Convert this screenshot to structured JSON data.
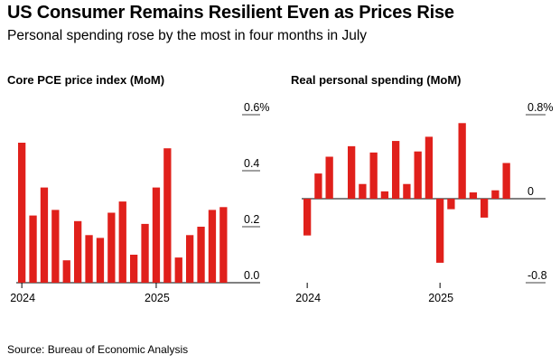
{
  "header": {
    "title": "US Consumer Remains Resilient Even as Prices Rise",
    "subtitle": "Personal spending rose by the most in four months in July"
  },
  "footer": {
    "source": "Source: Bureau of Economic Analysis"
  },
  "colors": {
    "bar": "#e0201b",
    "axis": "#000000",
    "grid": "#c8c8c8"
  },
  "chart_data": [
    {
      "type": "bar",
      "title": "Core PCE price index (MoM)",
      "x": [
        "2024-01",
        "2024-02",
        "2024-03",
        "2024-04",
        "2024-05",
        "2024-06",
        "2024-07",
        "2024-08",
        "2024-09",
        "2024-10",
        "2024-11",
        "2024-12",
        "2025-01",
        "2025-02",
        "2025-03",
        "2025-04",
        "2025-05",
        "2025-06",
        "2025-07"
      ],
      "values": [
        0.5,
        0.24,
        0.34,
        0.26,
        0.08,
        0.22,
        0.17,
        0.16,
        0.25,
        0.29,
        0.1,
        0.21,
        0.34,
        0.48,
        0.09,
        0.17,
        0.2,
        0.26,
        0.27
      ],
      "ylim": [
        0,
        0.6
      ],
      "yticks": [
        0.0,
        0.2,
        0.4,
        0.6
      ],
      "ytick_labels": [
        "0.0",
        "0.2",
        "0.4",
        "0.6%"
      ],
      "xtick_labels": [
        {
          "index": 0,
          "label": "2024"
        },
        {
          "index": 12,
          "label": "2025"
        }
      ],
      "grid": true,
      "ylabel": "",
      "xlabel": ""
    },
    {
      "type": "bar",
      "title": "Real personal spending (MoM)",
      "x": [
        "2024-01",
        "2024-02",
        "2024-03",
        "2024-04",
        "2024-05",
        "2024-06",
        "2024-07",
        "2024-08",
        "2024-09",
        "2024-10",
        "2024-11",
        "2024-12",
        "2025-01",
        "2025-02",
        "2025-03",
        "2025-04",
        "2025-05",
        "2025-06",
        "2025-07"
      ],
      "values": [
        -0.35,
        0.24,
        0.4,
        0.0,
        0.5,
        0.14,
        0.44,
        0.07,
        0.55,
        0.14,
        0.45,
        0.59,
        -0.61,
        -0.1,
        0.72,
        0.06,
        -0.18,
        0.08,
        0.34
      ],
      "ylim": [
        -0.8,
        0.8
      ],
      "yticks": [
        -0.8,
        0.0,
        0.8
      ],
      "ytick_labels": [
        "-0.8",
        "0",
        "0.8%"
      ],
      "xtick_labels": [
        {
          "index": 0,
          "label": "2024"
        },
        {
          "index": 12,
          "label": "2025"
        }
      ],
      "grid": true,
      "ylabel": "",
      "xlabel": ""
    }
  ]
}
